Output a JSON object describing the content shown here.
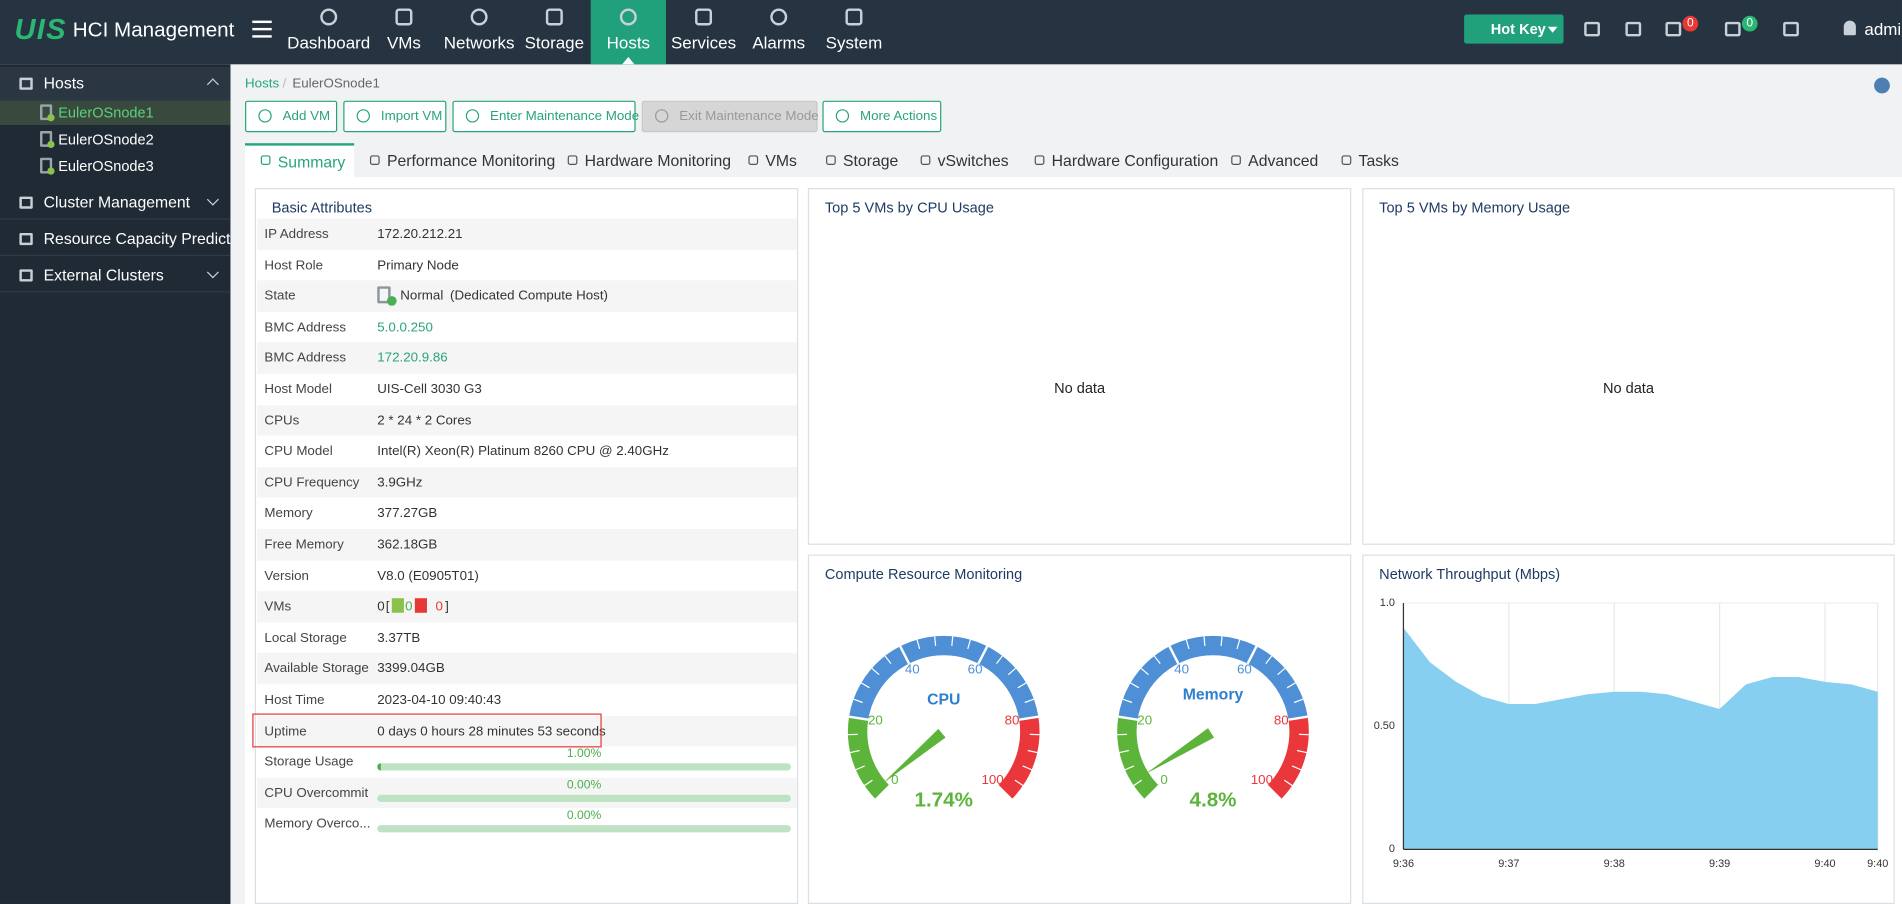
{
  "header": {
    "logo": "UIS",
    "title": "HCI Management",
    "nav": [
      "Dashboard",
      "VMs",
      "Networks",
      "Storage",
      "Hosts",
      "Services",
      "Alarms",
      "System"
    ],
    "hot_key": "Hot Key",
    "alarm_count": "0",
    "task_count": "0",
    "user": "admin"
  },
  "sidebar": {
    "items": [
      {
        "label": "Hosts",
        "children": [
          "EulerOSnode1",
          "EulerOSnode2",
          "EulerOSnode3"
        ]
      },
      {
        "label": "Cluster Management"
      },
      {
        "label": "Resource Capacity Prediction"
      },
      {
        "label": "External Clusters"
      }
    ]
  },
  "breadcrumb": [
    "Hosts",
    "EulerOSnode1"
  ],
  "breadcrumb_separator": "/",
  "actions": [
    "Add VM",
    "Import VM",
    "Enter Maintenance Mode",
    "Exit Maintenance Mode",
    "More Actions"
  ],
  "tabs": [
    "Summary",
    "Performance Monitoring",
    "Hardware Monitoring",
    "VMs",
    "Storage",
    "vSwitches",
    "Hardware Configuration",
    "Advanced",
    "Tasks"
  ],
  "basic_attributes": {
    "title": "Basic Attributes",
    "rows": [
      {
        "label": "IP Address",
        "value": "172.20.212.21"
      },
      {
        "label": "Host Role",
        "value": "Primary Node"
      },
      {
        "label": "State",
        "value": "Normal",
        "note": "(Dedicated Compute Host)"
      },
      {
        "label": "BMC Address",
        "value": "5.0.0.250"
      },
      {
        "label": "BMC Address",
        "value": "172.20.9.86"
      },
      {
        "label": "Host Model",
        "value": "UIS-Cell 3030 G3"
      },
      {
        "label": "CPUs",
        "value": "2 * 24 * 2 Cores"
      },
      {
        "label": "CPU Model",
        "value": "Intel(R) Xeon(R) Platinum 8260 CPU @ 2.40GHz"
      },
      {
        "label": "CPU Frequency",
        "value": "3.9GHz"
      },
      {
        "label": "Memory",
        "value": "377.27GB"
      },
      {
        "label": "Free Memory",
        "value": "362.18GB"
      },
      {
        "label": "Version",
        "value": "V8.0 (E0905T01)"
      },
      {
        "label": "VMs",
        "value": "0",
        "open": "[",
        "running": "0",
        "stopped": "0",
        "close": "]"
      },
      {
        "label": "Local Storage",
        "value": "3.37TB"
      },
      {
        "label": "Available Storage",
        "value": "3399.04GB"
      },
      {
        "label": "Host Time",
        "value": "2023-04-10 09:40:43"
      },
      {
        "label": "Uptime",
        "value": "0 days 0 hours 28 minutes 53 seconds"
      }
    ],
    "usage": [
      {
        "label": "Storage Usage",
        "value": 1.0,
        "value_label": "1.00%"
      },
      {
        "label": "CPU Overcommit",
        "value": 0,
        "value_label": "0.00%"
      },
      {
        "label": "Memory Overco...",
        "value": 0,
        "value_label": "0.00%"
      }
    ]
  },
  "top_cpu": {
    "title": "Top 5 VMs by CPU Usage",
    "empty": "No data"
  },
  "top_memory": {
    "title": "Top 5 VMs by Memory Usage",
    "empty": "No data"
  },
  "compute": {
    "title": "Compute Resource Monitoring",
    "range": [
      0,
      100
    ],
    "ticks": [
      0,
      20,
      40,
      60,
      80,
      100
    ],
    "gauges": [
      {
        "name": "CPU",
        "value": 1.74,
        "value_label": "1.74%"
      },
      {
        "name": "Memory",
        "value": 4.8,
        "value_label": "4.8%"
      }
    ]
  },
  "network": {
    "title": "Network Throughput (Mbps)",
    "type": "area",
    "color": "#86cff0",
    "categories": [
      "9:36",
      null,
      null,
      null,
      "9:37",
      null,
      null,
      null,
      "9:38",
      null,
      null,
      null,
      "9:39",
      null,
      null,
      null,
      "9:40",
      null,
      "9:40"
    ],
    "values": [
      0.9,
      0.76,
      0.68,
      0.62,
      0.59,
      0.59,
      0.61,
      0.63,
      0.64,
      0.64,
      0.63,
      0.6,
      0.57,
      0.67,
      0.7,
      0.7,
      0.68,
      0.67,
      0.64
    ],
    "ylim": [
      0,
      1
    ],
    "yticks": [
      0,
      {
        "value": 0.5,
        "label": "0.50"
      },
      {
        "value": 1,
        "label": "1.0"
      }
    ],
    "grid": true
  }
}
